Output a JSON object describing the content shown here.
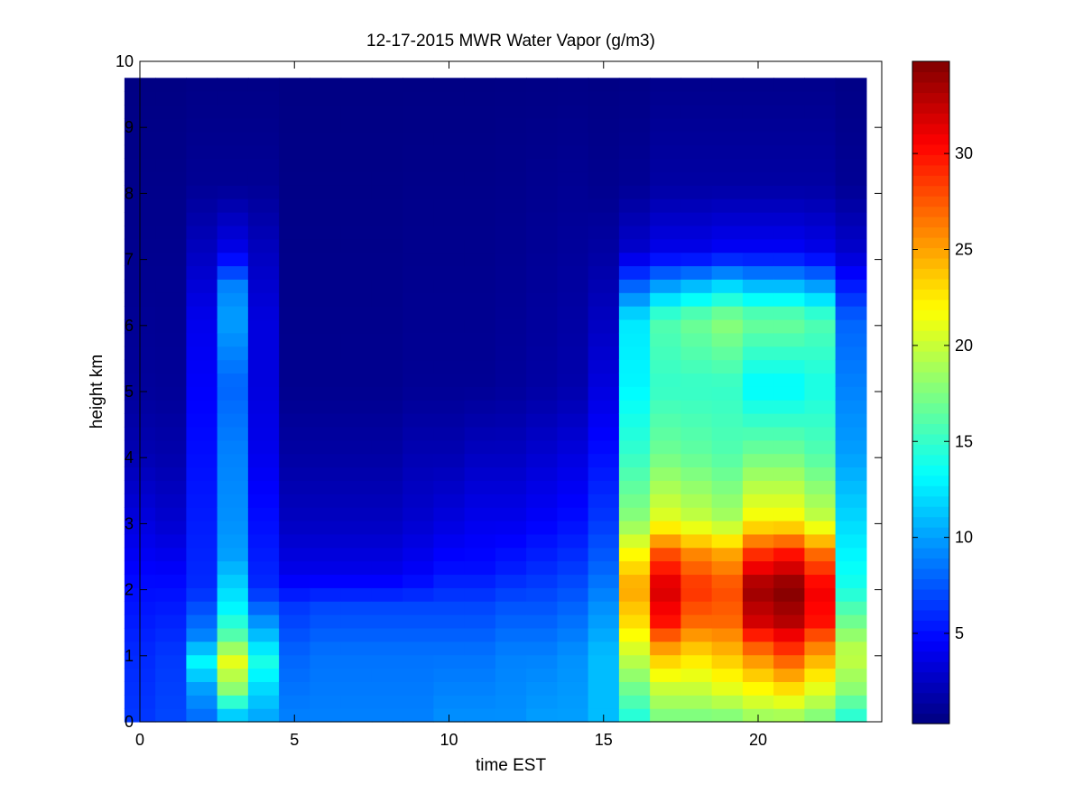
{
  "chart_data": {
    "type": "heatmap",
    "title": "12-17-2015 MWR Water Vapor (g/m3)",
    "xlabel": "time EST",
    "ylabel": "height km",
    "xlim": [
      0,
      24
    ],
    "ylim": [
      0,
      10
    ],
    "x_ticks": [
      0,
      5,
      10,
      15,
      20
    ],
    "y_ticks": [
      0,
      1,
      2,
      3,
      4,
      5,
      6,
      7,
      8,
      9,
      10
    ],
    "colormap": "jet",
    "colorbar": {
      "range": [
        0.3,
        34.8
      ],
      "ticks": [
        5,
        10,
        15,
        20,
        25,
        30
      ]
    },
    "x_centers": [
      0,
      1,
      2,
      3,
      4,
      5,
      6,
      7,
      8,
      9,
      10,
      11,
      12,
      13,
      14,
      15,
      16,
      17,
      18,
      19,
      20,
      21,
      22,
      23
    ],
    "grid": false,
    "legend": "none",
    "data_extent": {
      "x": [
        -0.5,
        23.5
      ],
      "y": [
        0,
        9.75
      ]
    },
    "heights_km": [
      0.1,
      0.3,
      0.5,
      0.7,
      0.9,
      1.1,
      1.3,
      1.5,
      1.7,
      1.9,
      2.1,
      2.3,
      2.5,
      2.7,
      2.9,
      3.1,
      3.3,
      3.5,
      3.7,
      3.9,
      4.1,
      4.3,
      4.5,
      4.7,
      4.9,
      5.1,
      5.3,
      5.5,
      5.7,
      5.9,
      6.1,
      6.3,
      6.5,
      6.7,
      6.9,
      7.1,
      7.3,
      7.5,
      7.7,
      7.9,
      8.1,
      8.3,
      8.5,
      8.7,
      8.9,
      9.1,
      9.3,
      9.5
    ],
    "time_centers": [
      0,
      1,
      2,
      3,
      4,
      5,
      6,
      7,
      8,
      9,
      10,
      11,
      12,
      13,
      14,
      15,
      16,
      17,
      18,
      19,
      20,
      21,
      22,
      23
    ],
    "profiles": [
      {
        "x": 0,
        "h": [
          0,
          1,
          2,
          3,
          4,
          5,
          7,
          10
        ],
        "v": [
          6.5,
          6.0,
          5.0,
          3.5,
          2.0,
          1.2,
          0.8,
          0.4
        ]
      },
      {
        "x": 1,
        "h": [
          0,
          1,
          2,
          3,
          4,
          5,
          7,
          10
        ],
        "v": [
          7.0,
          6.5,
          5.0,
          3.0,
          1.8,
          1.1,
          0.8,
          0.4
        ]
      },
      {
        "x": 2,
        "h": [
          0,
          0.5,
          0.9,
          1.3,
          2,
          3,
          4,
          5,
          6,
          7,
          8,
          10
        ],
        "v": [
          8.0,
          10.0,
          13.0,
          9.0,
          6.0,
          5.5,
          5.0,
          4.5,
          4.0,
          2.5,
          1.0,
          0.4
        ]
      },
      {
        "x": 3,
        "h": [
          0,
          0.5,
          0.9,
          1.3,
          1.7,
          2.5,
          3,
          4,
          5,
          6,
          6.5,
          7,
          8,
          10
        ],
        "v": [
          10.0,
          18.0,
          21.0,
          16.0,
          13.0,
          10.0,
          9.5,
          9.0,
          8.0,
          10.0,
          9.0,
          4.0,
          1.0,
          0.4
        ]
      },
      {
        "x": 4,
        "h": [
          0,
          0.5,
          0.9,
          1.3,
          2,
          3,
          4,
          5,
          6,
          7,
          8,
          10
        ],
        "v": [
          10.0,
          12.0,
          14.0,
          11.0,
          6.0,
          5.0,
          4.0,
          3.5,
          3.5,
          2.5,
          1.0,
          0.4
        ]
      },
      {
        "x": 5,
        "h": [
          0,
          1,
          1.7,
          2.2,
          3,
          4,
          5,
          10
        ],
        "v": [
          9.0,
          8.0,
          6.5,
          4.0,
          2.5,
          1.5,
          0.8,
          0.4
        ]
      },
      {
        "x": 6,
        "h": [
          0,
          1,
          1.7,
          2.2,
          3,
          4,
          5,
          10
        ],
        "v": [
          9.0,
          8.5,
          7.0,
          4.0,
          2.5,
          1.5,
          0.8,
          0.4
        ]
      },
      {
        "x": 7,
        "h": [
          0,
          1,
          1.7,
          2.2,
          3,
          4,
          5,
          10
        ],
        "v": [
          9.0,
          8.5,
          7.0,
          4.0,
          2.5,
          1.5,
          0.8,
          0.4
        ]
      },
      {
        "x": 8,
        "h": [
          0,
          1,
          1.7,
          2.2,
          3,
          4,
          5,
          10
        ],
        "v": [
          9.0,
          8.5,
          7.0,
          4.0,
          2.5,
          1.5,
          0.8,
          0.4
        ]
      },
      {
        "x": 9,
        "h": [
          0,
          1,
          1.7,
          2.2,
          3,
          4,
          5,
          10
        ],
        "v": [
          9.0,
          8.5,
          7.0,
          4.5,
          3.0,
          2.0,
          1.0,
          0.4
        ]
      },
      {
        "x": 10,
        "h": [
          0,
          1,
          1.7,
          2.3,
          3,
          4,
          5,
          10
        ],
        "v": [
          9.5,
          8.5,
          7.0,
          5.0,
          3.5,
          2.0,
          1.0,
          0.4
        ]
      },
      {
        "x": 11,
        "h": [
          0,
          1,
          1.7,
          2.3,
          3,
          4,
          5,
          10
        ],
        "v": [
          9.5,
          8.5,
          7.0,
          5.0,
          4.0,
          2.5,
          1.0,
          0.4
        ]
      },
      {
        "x": 12,
        "h": [
          0,
          1,
          1.7,
          2.3,
          3,
          4,
          5,
          10
        ],
        "v": [
          9.5,
          9.0,
          7.5,
          5.5,
          4.0,
          2.5,
          1.2,
          0.4
        ]
      },
      {
        "x": 13,
        "h": [
          0,
          1,
          1.7,
          2.3,
          3,
          4,
          5,
          10
        ],
        "v": [
          10.0,
          9.0,
          7.5,
          6.0,
          4.5,
          3.0,
          1.5,
          0.4
        ]
      },
      {
        "x": 14,
        "h": [
          0,
          1,
          1.7,
          2.3,
          3,
          4,
          5,
          10
        ],
        "v": [
          10.0,
          9.5,
          8.0,
          6.5,
          5.0,
          3.5,
          1.8,
          0.4
        ]
      },
      {
        "x": 15,
        "h": [
          0,
          1,
          1.7,
          2.3,
          3,
          4,
          5,
          6,
          7,
          8,
          10
        ],
        "v": [
          11.0,
          11.0,
          9.5,
          8.0,
          6.5,
          5.0,
          3.5,
          2.5,
          1.5,
          0.8,
          0.4
        ]
      },
      {
        "x": 16,
        "h": [
          0,
          0.5,
          1,
          1.5,
          2,
          2.5,
          3,
          4,
          5,
          6,
          6.5,
          7,
          8,
          10
        ],
        "v": [
          14.0,
          17.0,
          20.0,
          23.0,
          25.0,
          22.0,
          18.0,
          15.0,
          13.0,
          12.5,
          8.0,
          3.0,
          1.0,
          0.4
        ]
      },
      {
        "x": 17,
        "h": [
          0,
          0.5,
          1,
          1.5,
          2,
          2.5,
          3,
          4,
          5,
          6,
          6.5,
          7,
          8,
          10
        ],
        "v": [
          17.0,
          20.0,
          24.0,
          30.0,
          32.0,
          28.0,
          21.0,
          17.0,
          15.0,
          16.0,
          10.0,
          4.0,
          1.5,
          0.5
        ]
      },
      {
        "x": 18,
        "h": [
          0,
          0.5,
          1,
          1.5,
          2,
          2.5,
          3,
          4,
          5,
          6,
          6.5,
          7,
          8,
          10
        ],
        "v": [
          17.0,
          20.0,
          23.0,
          27.0,
          29.0,
          26.0,
          20.0,
          16.5,
          15.0,
          17.0,
          11.0,
          4.0,
          1.5,
          0.5
        ]
      },
      {
        "x": 19,
        "h": [
          0,
          0.5,
          1,
          1.5,
          2,
          2.5,
          3,
          4,
          5,
          6,
          6.5,
          7,
          8,
          10
        ],
        "v": [
          17.0,
          21.0,
          24.0,
          27.0,
          28.0,
          25.0,
          19.0,
          16.0,
          15.0,
          18.0,
          12.0,
          4.5,
          1.5,
          0.5
        ]
      },
      {
        "x": 20,
        "h": [
          0,
          0.5,
          1,
          1.5,
          2,
          2.5,
          3,
          4,
          5,
          6,
          6.5,
          7,
          8,
          10
        ],
        "v": [
          18.0,
          22.0,
          26.0,
          32.0,
          34.0,
          29.0,
          22.0,
          17.0,
          13.0,
          17.0,
          11.0,
          4.5,
          1.5,
          0.5
        ]
      },
      {
        "x": 21,
        "h": [
          0,
          0.5,
          1,
          1.5,
          2,
          2.5,
          3,
          4,
          5,
          6,
          6.5,
          7,
          8,
          10
        ],
        "v": [
          18.0,
          23.0,
          28.0,
          33.0,
          34.8,
          30.0,
          22.0,
          17.0,
          13.0,
          17.0,
          11.0,
          4.5,
          1.5,
          0.5
        ]
      },
      {
        "x": 22,
        "h": [
          0,
          0.5,
          1,
          1.5,
          2,
          2.5,
          3,
          4,
          5,
          6,
          6.5,
          7,
          8,
          10
        ],
        "v": [
          17.0,
          21.0,
          25.0,
          30.0,
          31.0,
          27.0,
          20.0,
          16.0,
          14.0,
          16.0,
          10.0,
          4.0,
          1.5,
          0.5
        ]
      },
      {
        "x": 23,
        "h": [
          0,
          0.5,
          1,
          1.5,
          2,
          3,
          4,
          5,
          6,
          7,
          8,
          10
        ],
        "v": [
          14.0,
          18.0,
          20.0,
          17.0,
          14.0,
          12.0,
          10.0,
          9.0,
          8.0,
          3.0,
          1.0,
          0.4
        ]
      }
    ]
  }
}
